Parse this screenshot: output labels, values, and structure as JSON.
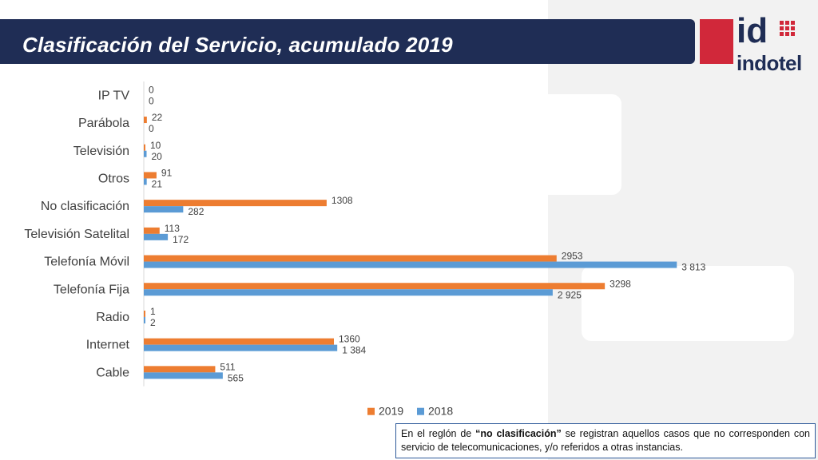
{
  "header": {
    "title": "Clasificación del Servicio, acumulado 2019"
  },
  "logo": {
    "id": "id",
    "brand": "indotel"
  },
  "note": {
    "prefix": "En el reglón de ",
    "highlight": "“no clasificación”",
    "suffix": " se registran aquellos casos que no corresponden con servicio de telecomunicaciones, y/o referidos a otras instancias."
  },
  "colors": {
    "series_2019": "#ed7d31",
    "series_2018": "#5b9bd5",
    "header": "#1f2d55",
    "brand_red": "#d1283a"
  },
  "chart_data": {
    "type": "bar",
    "orientation": "horizontal",
    "title": "",
    "xlabel": "",
    "ylabel": "",
    "categories": [
      "IP TV",
      "Parábola",
      "Televisión",
      "Otros",
      "No clasificación",
      "Televisión Satelital",
      "Telefonía Móvil",
      "Telefonía Fija",
      "Radio",
      "Internet",
      "Cable"
    ],
    "series": [
      {
        "name": "2019",
        "values": [
          0,
          22,
          10,
          91,
          1308,
          113,
          2953,
          3298,
          1,
          1360,
          511
        ],
        "labels": [
          "0",
          "22",
          "10",
          "91",
          "1308",
          "113",
          "2953",
          "3298",
          "1",
          "1360",
          "511"
        ]
      },
      {
        "name": "2018",
        "values": [
          0,
          0,
          20,
          21,
          282,
          172,
          3813,
          2925,
          2,
          1384,
          565
        ],
        "labels": [
          "0",
          "0",
          "20",
          "21",
          "282",
          "172",
          "3 813",
          "2 925",
          "2",
          "1 384",
          "565"
        ]
      }
    ],
    "xlim": [
      0,
      4000
    ],
    "grid": false,
    "legend": "bottom"
  }
}
